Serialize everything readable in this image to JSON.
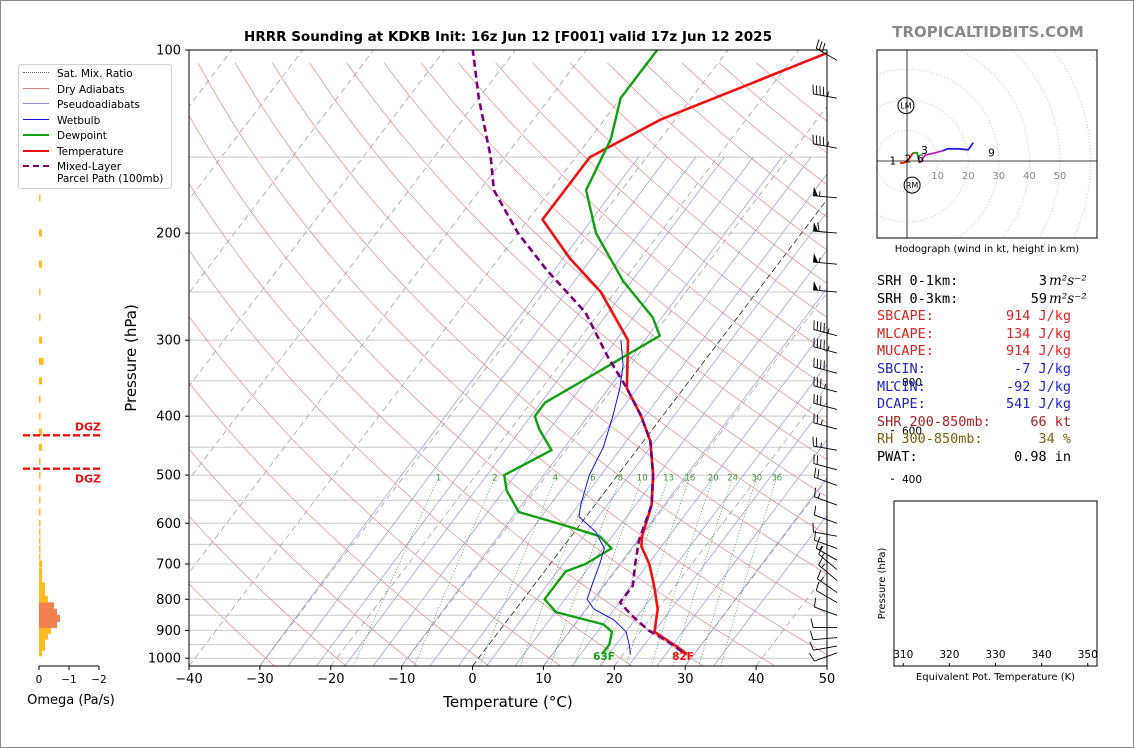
{
  "title": "HRRR Sounding at KDKB Init: 16z Jun 12 [F001] valid 17z Jun 12 2025",
  "watermark": "TROPICALTIDBITS.COM",
  "colors": {
    "temperature": "#ee1111",
    "dewpoint": "#11a011",
    "parcel": "#7b007b",
    "wetbulb": "#1111ee",
    "dry": "#e07a7a",
    "pseudo": "#8888dd",
    "mix": "#2a8a2a",
    "dgz": "#ee1111",
    "omega": "#ffbb22",
    "omega_strong": "#f08050"
  },
  "legend": [
    {
      "label": "Sat. Mix. Ratio",
      "style": "dotted-green"
    },
    {
      "label": "Dry Adiabats",
      "style": "thin-red"
    },
    {
      "label": "Pseudoadiabats",
      "style": "thin-blue"
    },
    {
      "label": "Wetbulb",
      "style": "blue"
    },
    {
      "label": "Dewpoint",
      "style": "green"
    },
    {
      "label": "Temperature",
      "style": "red"
    },
    {
      "label": "Mixed-Layer\nParcel Path (100mb)",
      "style": "purple-dashed"
    }
  ],
  "chart_data": [
    {
      "type": "line",
      "name": "skew-t",
      "xlabel": "Temperature (°C)",
      "ylabel": "Pressure (hPa)",
      "xlim": [
        -40,
        50
      ],
      "ylim": [
        1030,
        100
      ],
      "x_ticks": [
        "−40",
        "−30",
        "−20",
        "−10",
        "0",
        "10",
        "20",
        "30",
        "40",
        "50"
      ],
      "y_ticks": [
        "100",
        "200",
        "300",
        "400",
        "500",
        "600",
        "700",
        "800",
        "900",
        "1000"
      ],
      "y_scale": "log",
      "series": [
        {
          "name": "Temperature",
          "points": [
            [
              29,
              985
            ],
            [
              27,
              960
            ],
            [
              22,
              905
            ],
            [
              20,
              830
            ],
            [
              17,
              760
            ],
            [
              14,
              700
            ],
            [
              11,
              655
            ],
            [
              10,
              630
            ],
            [
              8,
              560
            ],
            [
              5,
              500
            ],
            [
              1,
              440
            ],
            [
              -3,
              400
            ],
            [
              -8,
              360
            ],
            [
              -13,
              300
            ],
            [
              -22,
              250
            ],
            [
              -30,
              220
            ],
            [
              -38,
              190
            ],
            [
              -38,
              150
            ],
            [
              -32,
              130
            ],
            [
              -24,
              115
            ],
            [
              -15,
              100
            ]
          ]
        },
        {
          "name": "Dewpoint",
          "points": [
            [
              17,
              985
            ],
            [
              17,
              950
            ],
            [
              16,
              905
            ],
            [
              14,
              880
            ],
            [
              6,
              840
            ],
            [
              3,
              800
            ],
            [
              3,
              760
            ],
            [
              3,
              720
            ],
            [
              5,
              700
            ],
            [
              7,
              660
            ],
            [
              4,
              630
            ],
            [
              -2,
              605
            ],
            [
              -10,
              575
            ],
            [
              -14,
              530
            ],
            [
              -16,
              500
            ],
            [
              -12,
              455
            ],
            [
              -16,
              420
            ],
            [
              -18,
              400
            ],
            [
              -18,
              380
            ],
            [
              -14,
              340
            ],
            [
              -9,
              295
            ],
            [
              -12,
              275
            ],
            [
              -20,
              240
            ],
            [
              -29,
              200
            ],
            [
              -35,
              170
            ],
            [
              -37,
              140
            ],
            [
              -40,
              120
            ],
            [
              -40,
              100
            ]
          ]
        },
        {
          "name": "Wetbulb",
          "points": [
            [
              21,
              985
            ],
            [
              20,
              955
            ],
            [
              18,
              905
            ],
            [
              15,
              865
            ],
            [
              11,
              830
            ],
            [
              9,
              800
            ],
            [
              8,
              750
            ],
            [
              7,
              700
            ],
            [
              6,
              660
            ],
            [
              3,
              620
            ],
            [
              -1,
              585
            ],
            [
              -2,
              560
            ],
            [
              -4,
              500
            ],
            [
              -5,
              450
            ],
            [
              -7,
              400
            ],
            [
              -9,
              360
            ],
            [
              -11,
              330
            ],
            [
              -14,
              300
            ]
          ]
        },
        {
          "name": "Mixed-Layer Parcel Path (100mb)",
          "points": [
            [
              28,
              975
            ],
            [
              25,
              940
            ],
            [
              21,
              900
            ],
            [
              17,
              850
            ],
            [
              14,
              810
            ],
            [
              14,
              760
            ],
            [
              12,
              700
            ],
            [
              10,
              640
            ],
            [
              8,
              560
            ],
            [
              5,
              500
            ],
            [
              1,
              440
            ],
            [
              -3,
              400
            ],
            [
              -8,
              360
            ],
            [
              -14,
              320
            ],
            [
              -22,
              270
            ],
            [
              -32,
              230
            ],
            [
              -40,
              200
            ],
            [
              -48,
              170
            ],
            [
              -52,
              150
            ],
            [
              -60,
              120
            ],
            [
              -66,
              100
            ]
          ]
        }
      ],
      "surface_labels": {
        "temperature": "82F",
        "dewpoint": "63F"
      },
      "mixing_ratio_labels": [
        "1",
        "2",
        "4",
        "6",
        "8",
        "10",
        "13",
        "16",
        "20",
        "24",
        "30",
        "36"
      ],
      "grid": true
    },
    {
      "type": "bar",
      "name": "omega",
      "xlabel": "Omega (Pa/s)",
      "x_ticks": [
        "0",
        "−1",
        "−2"
      ],
      "dgz": {
        "label": "DGZ",
        "top_hpa": 488,
        "bottom_hpa": 430
      },
      "levels_hpa": [
        980,
        960,
        940,
        920,
        900,
        880,
        860,
        840,
        820,
        800,
        780,
        760,
        740,
        720,
        700,
        680,
        660,
        640,
        620,
        600,
        575,
        550,
        525,
        500,
        475,
        450,
        425,
        400,
        375,
        350,
        325,
        300,
        275,
        250,
        225,
        200,
        175,
        150,
        125
      ],
      "values": [
        -0.1,
        -0.2,
        -0.2,
        -0.3,
        -0.4,
        -0.6,
        -0.7,
        -0.6,
        -0.5,
        -0.3,
        -0.2,
        -0.2,
        -0.1,
        -0.1,
        -0.1,
        -0.05,
        -0.05,
        -0.05,
        -0.02,
        0.0,
        -0.02,
        -0.02,
        -0.02,
        -0.05,
        -0.05,
        -0.1,
        -0.1,
        -0.05,
        -0.05,
        -0.1,
        -0.15,
        -0.1,
        -0.05,
        -0.05,
        -0.1,
        -0.1,
        -0.05,
        -0.05,
        -0.05
      ]
    },
    {
      "type": "line",
      "name": "hodograph",
      "caption": "Hodograph (wind in kt, height in km)",
      "rings": [
        "10",
        "20",
        "30",
        "40",
        "50"
      ],
      "markers": [
        {
          "label": "LM"
        },
        {
          "label": "RM"
        }
      ],
      "height_labels": [
        "1",
        "2",
        "3",
        "6",
        "9"
      ],
      "segments": [
        {
          "range": "0-1",
          "color": "#ee1111",
          "points": [
            [
              -7,
              -2
            ],
            [
              -3,
              -2
            ]
          ]
        },
        {
          "range": "1-3",
          "color": "#ee1111",
          "points": [
            [
              -3,
              -2
            ],
            [
              2,
              2
            ],
            [
              6,
              8
            ]
          ]
        },
        {
          "range": "3-6",
          "color": "#11a011",
          "points": [
            [
              6,
              8
            ],
            [
              10,
              8
            ],
            [
              12,
              -2
            ]
          ]
        },
        {
          "range": "6-9",
          "color": "#bb22bb",
          "points": [
            [
              12,
              -2
            ],
            [
              15,
              2
            ],
            [
              18,
              6
            ],
            [
              28,
              8
            ],
            [
              35,
              10
            ]
          ]
        },
        {
          "range": "9-12",
          "color": "#2222ee",
          "points": [
            [
              35,
              10
            ],
            [
              40,
              12
            ],
            [
              50,
              12
            ],
            [
              60,
              11
            ],
            [
              65,
              18
            ]
          ]
        }
      ],
      "rm_uv": [
        5,
        -6
      ],
      "lm_uv": [
        -1,
        19
      ]
    },
    {
      "type": "line",
      "name": "theta-e",
      "xlabel": "Equivalent Pot. Temperature (K)",
      "ylabel": "Pressure (hPa)",
      "x_ticks": [
        "310",
        "320",
        "330",
        "340",
        "350"
      ],
      "y_ticks": [
        "400",
        "600",
        "800"
      ],
      "xlim": [
        308,
        352
      ],
      "ylim": [
        990,
        310
      ],
      "points": [
        [
          337,
          970
        ],
        [
          332,
          955
        ],
        [
          331,
          940
        ],
        [
          328,
          880
        ],
        [
          321,
          860
        ],
        [
          319,
          840
        ],
        [
          320,
          800
        ],
        [
          321,
          770
        ],
        [
          322,
          720
        ],
        [
          324,
          680
        ],
        [
          323,
          630
        ],
        [
          321,
          605
        ],
        [
          319,
          570
        ],
        [
          320,
          540
        ],
        [
          322,
          510
        ],
        [
          325,
          470
        ],
        [
          328,
          430
        ],
        [
          331,
          400
        ],
        [
          336,
          370
        ],
        [
          341,
          340
        ],
        [
          343,
          320
        ]
      ]
    }
  ],
  "wind_barbs": [
    {
      "hpa": 980,
      "speed": 10,
      "dir": 250
    },
    {
      "hpa": 955,
      "speed": 10,
      "dir": 260
    },
    {
      "hpa": 925,
      "speed": 10,
      "dir": 265
    },
    {
      "hpa": 890,
      "speed": 10,
      "dir": 270
    },
    {
      "hpa": 850,
      "speed": 10,
      "dir": 290
    },
    {
      "hpa": 810,
      "speed": 10,
      "dir": 300
    },
    {
      "hpa": 780,
      "speed": 15,
      "dir": 305
    },
    {
      "hpa": 745,
      "speed": 15,
      "dir": 310
    },
    {
      "hpa": 715,
      "speed": 15,
      "dir": 310
    },
    {
      "hpa": 690,
      "speed": 15,
      "dir": 300
    },
    {
      "hpa": 660,
      "speed": 15,
      "dir": 290
    },
    {
      "hpa": 630,
      "speed": 10,
      "dir": 280
    },
    {
      "hpa": 600,
      "speed": 10,
      "dir": 290
    },
    {
      "hpa": 560,
      "speed": 15,
      "dir": 290
    },
    {
      "hpa": 520,
      "speed": 20,
      "dir": 290
    },
    {
      "hpa": 490,
      "speed": 20,
      "dir": 285
    },
    {
      "hpa": 455,
      "speed": 25,
      "dir": 280
    },
    {
      "hpa": 420,
      "speed": 25,
      "dir": 285
    },
    {
      "hpa": 390,
      "speed": 30,
      "dir": 285
    },
    {
      "hpa": 365,
      "speed": 35,
      "dir": 285
    },
    {
      "hpa": 340,
      "speed": 40,
      "dir": 285
    },
    {
      "hpa": 315,
      "speed": 45,
      "dir": 285
    },
    {
      "hpa": 295,
      "speed": 45,
      "dir": 285
    },
    {
      "hpa": 250,
      "speed": 55,
      "dir": 275
    },
    {
      "hpa": 225,
      "speed": 55,
      "dir": 275
    },
    {
      "hpa": 200,
      "speed": 60,
      "dir": 275
    },
    {
      "hpa": 175,
      "speed": 55,
      "dir": 275
    },
    {
      "hpa": 145,
      "speed": 45,
      "dir": 280
    },
    {
      "hpa": 120,
      "speed": 45,
      "dir": 280
    },
    {
      "hpa": 104,
      "speed": 30,
      "dir": 300
    }
  ],
  "params": [
    {
      "label": "SRH 0-1km:",
      "value": "3",
      "unit": "m²s⁻²",
      "color": "#000000"
    },
    {
      "label": "SRH 0-3km:",
      "value": "59",
      "unit": "m²s⁻²",
      "color": "#000000"
    },
    {
      "label": "SBCAPE:",
      "value": "914 J/kg",
      "unit": "",
      "color": "#dd2222"
    },
    {
      "label": "MLCAPE:",
      "value": "134 J/kg",
      "unit": "",
      "color": "#dd2222"
    },
    {
      "label": "MUCAPE:",
      "value": "914 J/kg",
      "unit": "",
      "color": "#dd2222"
    },
    {
      "label": "SBCIN:",
      "value": "-7 J/kg",
      "unit": "",
      "color": "#2222cc"
    },
    {
      "label": "MLCIN:",
      "value": "-92 J/kg",
      "unit": "",
      "color": "#2222cc"
    },
    {
      "label": "DCAPE:",
      "value": "541 J/kg",
      "unit": "",
      "color": "#2222cc"
    },
    {
      "label": "SHR 200-850mb:",
      "value": "66 kt",
      "unit": "",
      "color": "#aa2222"
    },
    {
      "label": "RH 300-850mb:",
      "value": "34 %",
      "unit": "",
      "color": "#806010"
    },
    {
      "label": "PWAT:",
      "value": "0.98 in",
      "unit": "",
      "color": "#000000"
    }
  ]
}
